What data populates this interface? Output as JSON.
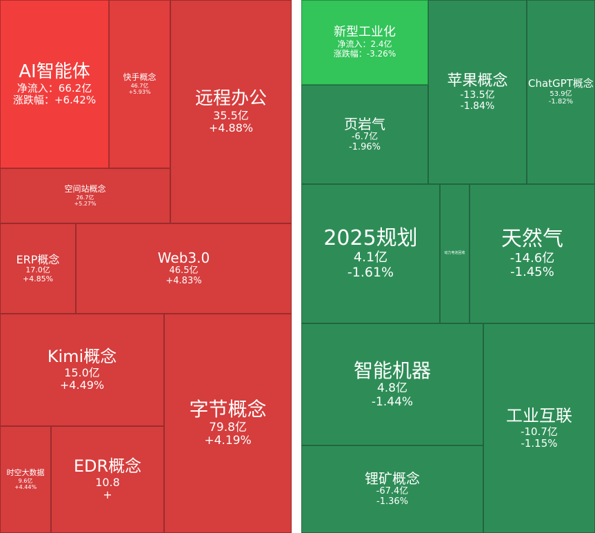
{
  "panels": [
    {
      "tiles": [
        {
          "name": "AI智能体",
          "lines": [
            "净流入：66.2亿",
            "涨跌幅：+6.42%"
          ]
        },
        {
          "name": "快手概念",
          "lines": [
            "46.7亿",
            "+5.93%"
          ]
        },
        {
          "name": "远程办公",
          "lines": [
            "35.5亿",
            "+4.88%"
          ]
        },
        {
          "name": "空间站概念",
          "lines": [
            "26.7亿",
            "+5.27%"
          ]
        },
        {
          "name": "ERP概念",
          "lines": [
            "17.0亿",
            "+4.85%"
          ]
        },
        {
          "name": "Web3.0",
          "lines": [
            "46.5亿",
            "+4.83%"
          ]
        },
        {
          "name": "Kimi概念",
          "lines": [
            "15.0亿",
            "+4.49%"
          ]
        },
        {
          "name": "字节概念",
          "lines": [
            "79.8亿",
            "+4.19%"
          ]
        },
        {
          "name": "时空大数据",
          "lines": [
            "9.6亿",
            "+4.44%"
          ]
        },
        {
          "name": "EDR概念",
          "lines": [
            "10.8",
            "+"
          ]
        }
      ]
    },
    {
      "tiles": [
        {
          "name": "新型工业化",
          "lines": [
            "净流入：2.4亿",
            "涨跌幅：-3.26%"
          ]
        },
        {
          "name": "页岩气",
          "lines": [
            "-6.7亿",
            "-1.96%"
          ]
        },
        {
          "name": "苹果概念",
          "lines": [
            "-13.5亿",
            "-1.84%"
          ]
        },
        {
          "name": "ChatGPT概念",
          "lines": [
            "53.9亿",
            "-1.82%"
          ]
        },
        {
          "name": "2025规划",
          "lines": [
            "4.1亿",
            "-1.61%"
          ]
        },
        {
          "name": "动力电池回收",
          "lines": []
        },
        {
          "name": "天然气",
          "lines": [
            "-14.6亿",
            "-1.45%"
          ]
        },
        {
          "name": "智能机器",
          "lines": [
            "4.8亿",
            "-1.44%"
          ]
        },
        {
          "name": "工业互联",
          "lines": [
            "-10.7亿",
            "-1.15%"
          ]
        },
        {
          "name": "锂矿概念",
          "lines": [
            "-67.4亿",
            "-1.36%"
          ]
        }
      ]
    }
  ]
}
